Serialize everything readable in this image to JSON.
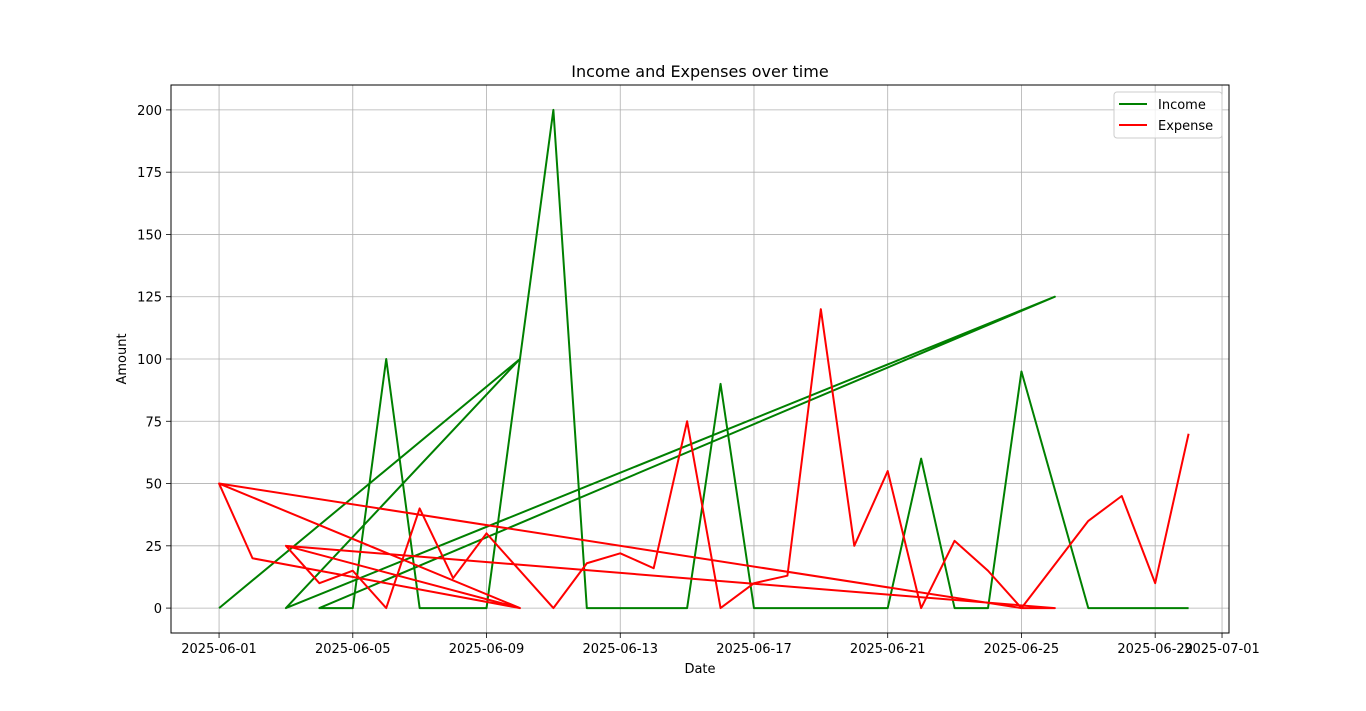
{
  "chart_data": {
    "type": "line",
    "title": "Income and Expenses over time",
    "xlabel": "Date",
    "ylabel": "Amount",
    "xlim": [
      "2025-05-30 13:30",
      "2025-07-01 05:00"
    ],
    "ylim": [
      -10,
      210
    ],
    "x_ticks": [
      "2025-06-01",
      "2025-06-05",
      "2025-06-09",
      "2025-06-13",
      "2025-06-17",
      "2025-06-21",
      "2025-06-25",
      "2025-06-29",
      "2025-07-01"
    ],
    "y_ticks": [
      0,
      25,
      50,
      75,
      100,
      125,
      150,
      175,
      200
    ],
    "grid": true,
    "legend_position": "top-right",
    "series": [
      {
        "name": "Income",
        "color": "#008000",
        "points": [
          [
            "2025-06-01",
            0
          ],
          [
            "2025-06-10",
            100
          ],
          [
            "2025-06-03",
            0
          ],
          [
            "2025-06-26",
            125
          ],
          [
            "2025-06-04",
            0
          ],
          [
            "2025-06-05",
            0
          ],
          [
            "2025-06-06",
            100
          ],
          [
            "2025-06-07",
            0
          ],
          [
            "2025-06-08",
            0
          ],
          [
            "2025-06-09",
            0
          ],
          [
            "2025-06-10",
            100
          ],
          [
            "2025-06-11",
            200
          ],
          [
            "2025-06-12",
            0
          ],
          [
            "2025-06-13",
            0
          ],
          [
            "2025-06-14",
            0
          ],
          [
            "2025-06-15",
            0
          ],
          [
            "2025-06-16",
            90
          ],
          [
            "2025-06-17",
            0
          ],
          [
            "2025-06-18",
            0
          ],
          [
            "2025-06-19",
            0
          ],
          [
            "2025-06-20",
            0
          ],
          [
            "2025-06-21",
            0
          ],
          [
            "2025-06-22",
            60
          ],
          [
            "2025-06-23",
            0
          ],
          [
            "2025-06-24",
            0
          ],
          [
            "2025-06-25",
            95
          ],
          [
            "2025-06-27",
            0
          ],
          [
            "2025-06-28",
            0
          ],
          [
            "2025-06-29",
            0
          ],
          [
            "2025-06-30",
            0
          ]
        ]
      },
      {
        "name": "Expense",
        "color": "#ff0000",
        "points": [
          [
            "2025-06-01",
            50
          ],
          [
            "2025-06-10",
            0
          ],
          [
            "2025-06-03",
            25
          ],
          [
            "2025-06-26",
            0
          ],
          [
            "2025-06-25",
            0
          ],
          [
            "2025-06-01",
            50
          ],
          [
            "2025-06-02",
            20
          ],
          [
            "2025-06-10",
            0
          ],
          [
            "2025-06-03",
            25
          ],
          [
            "2025-06-04",
            10
          ],
          [
            "2025-06-05",
            15
          ],
          [
            "2025-06-06",
            0
          ],
          [
            "2025-06-07",
            40
          ],
          [
            "2025-06-08",
            12
          ],
          [
            "2025-06-09",
            30
          ],
          [
            "2025-06-11",
            0
          ],
          [
            "2025-06-12",
            18
          ],
          [
            "2025-06-13",
            22
          ],
          [
            "2025-06-14",
            16
          ],
          [
            "2025-06-15",
            75
          ],
          [
            "2025-06-16",
            0
          ],
          [
            "2025-06-17",
            10
          ],
          [
            "2025-06-18",
            13
          ],
          [
            "2025-06-19",
            120
          ],
          [
            "2025-06-20",
            25
          ],
          [
            "2025-06-21",
            55
          ],
          [
            "2025-06-22",
            0
          ],
          [
            "2025-06-23",
            27
          ],
          [
            "2025-06-24",
            15
          ],
          [
            "2025-06-25",
            0
          ],
          [
            "2025-06-27",
            35
          ],
          [
            "2025-06-28",
            45
          ],
          [
            "2025-06-29",
            10
          ],
          [
            "2025-06-30",
            70
          ]
        ]
      }
    ]
  }
}
